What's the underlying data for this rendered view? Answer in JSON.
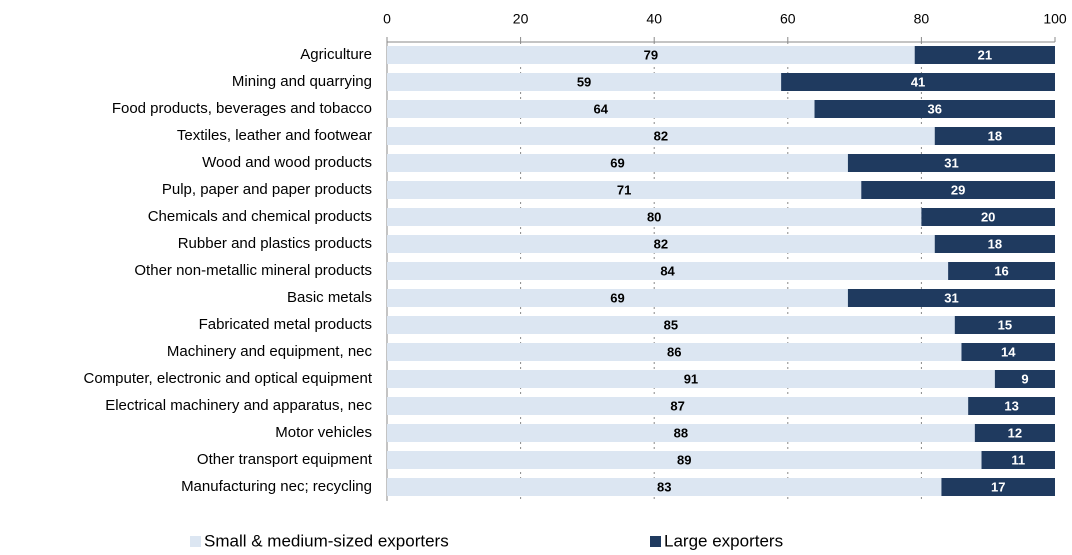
{
  "chart_data": {
    "type": "bar",
    "orientation": "horizontal",
    "stacked": true,
    "categories": [
      "Agriculture",
      "Mining and quarrying",
      "Food products, beverages and tobacco",
      "Textiles, leather and footwear",
      "Wood and wood products",
      "Pulp, paper and paper products",
      "Chemicals and chemical products",
      "Rubber and plastics products",
      "Other non-metallic mineral products",
      "Basic metals",
      "Fabricated metal products",
      "Machinery and equipment, nec",
      "Computer, electronic and optical equipment",
      "Electrical machinery and apparatus, nec",
      "Motor vehicles",
      "Other transport equipment",
      "Manufacturing nec; recycling"
    ],
    "series": [
      {
        "name": "Small & medium-sized exporters",
        "color": "#dce6f2",
        "values": [
          79,
          59,
          64,
          82,
          69,
          71,
          80,
          82,
          84,
          69,
          85,
          86,
          91,
          87,
          88,
          89,
          83
        ]
      },
      {
        "name": "Large exporters",
        "color": "#1f3a5f",
        "values": [
          21,
          41,
          36,
          18,
          31,
          29,
          20,
          18,
          16,
          31,
          15,
          14,
          9,
          13,
          12,
          11,
          17
        ]
      }
    ],
    "xlim": [
      0,
      100
    ],
    "xticks": [
      0,
      20,
      40,
      60,
      80,
      100
    ],
    "grid": true,
    "legend": "bottom"
  }
}
